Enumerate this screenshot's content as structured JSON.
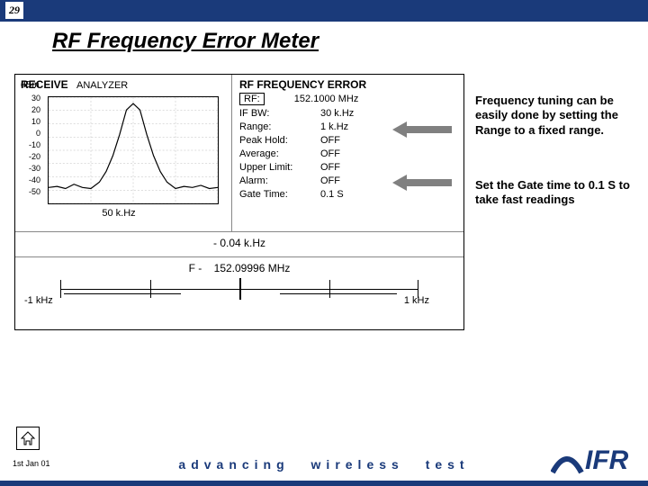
{
  "slide_number": "29",
  "title": "RF Frequency Error Meter",
  "screenshot": {
    "mode": "RECEIVE",
    "analyzer_label": "ANALYZER",
    "y_unit": "dBm",
    "y_ticks": [
      "30",
      "20",
      "10",
      "0",
      "-10",
      "-20",
      "-30",
      "-40",
      "-50"
    ],
    "x_span": "50 k.Hz",
    "panel_title": "RF FREQUENCY ERROR",
    "rf_label": "RF:",
    "rf_value": "152.1000 MHz",
    "params": [
      {
        "k": "IF BW:",
        "v": "30 k.Hz"
      },
      {
        "k": "Range:",
        "v": "1 k.Hz"
      },
      {
        "k": "Peak Hold:",
        "v": "OFF"
      },
      {
        "k": "Average:",
        "v": "OFF"
      },
      {
        "k": "Upper Limit:",
        "v": "OFF"
      },
      {
        "k": "Alarm:",
        "v": "OFF"
      },
      {
        "k": "Gate Time:",
        "v": "0.1 S"
      }
    ],
    "error_readout": "- 0.04 k.Hz",
    "freq_readout_prefix": "F -",
    "freq_readout": "152.09996 MHz",
    "meter_left": "-1 kHz",
    "meter_right": "1 kHz",
    "spectrum": {
      "grid_color": "#bbbbbb",
      "line_color": "#000000",
      "points": [
        [
          0,
          0.85
        ],
        [
          0.05,
          0.84
        ],
        [
          0.1,
          0.86
        ],
        [
          0.15,
          0.82
        ],
        [
          0.2,
          0.85
        ],
        [
          0.25,
          0.86
        ],
        [
          0.3,
          0.8
        ],
        [
          0.34,
          0.7
        ],
        [
          0.38,
          0.55
        ],
        [
          0.42,
          0.35
        ],
        [
          0.46,
          0.12
        ],
        [
          0.5,
          0.06
        ],
        [
          0.54,
          0.12
        ],
        [
          0.58,
          0.35
        ],
        [
          0.62,
          0.55
        ],
        [
          0.66,
          0.7
        ],
        [
          0.7,
          0.8
        ],
        [
          0.75,
          0.86
        ],
        [
          0.8,
          0.84
        ],
        [
          0.85,
          0.85
        ],
        [
          0.9,
          0.83
        ],
        [
          0.95,
          0.86
        ],
        [
          1.0,
          0.85
        ]
      ]
    }
  },
  "notes": {
    "note1": "Frequency tuning can be easily done by setting the Range to a fixed range.",
    "note2": "Set the Gate time to 0.1 S to take fast readings"
  },
  "arrows": {
    "color": "#808080"
  },
  "footer": {
    "date": "1st Jan 01",
    "tagline": "advancing wireless test"
  },
  "brand_color": "#1a3a7a"
}
